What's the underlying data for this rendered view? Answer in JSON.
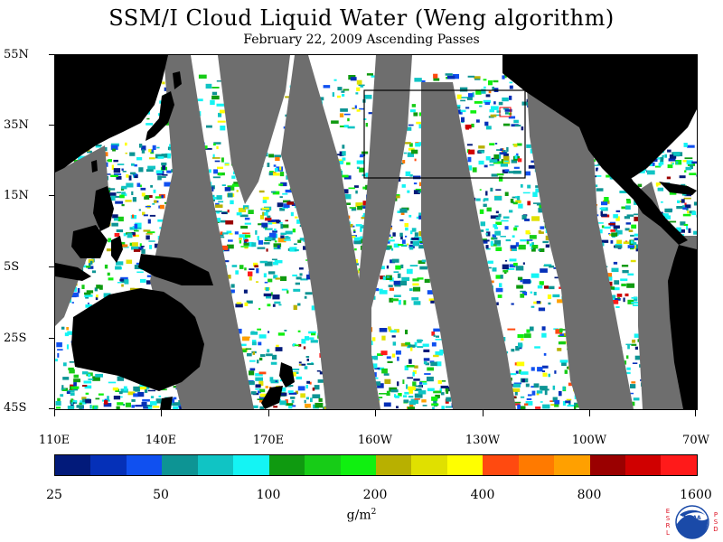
{
  "title": "SSM/I Cloud Liquid Water (Weng algorithm)",
  "subtitle": "February 22, 2009  Ascending Passes",
  "lat_labels": [
    "55N",
    "35N",
    "15N",
    "5S",
    "25S",
    "45S"
  ],
  "lon_labels": [
    "110E",
    "140E",
    "170E",
    "160W",
    "130W",
    "100W",
    "70W"
  ],
  "colorbar": {
    "labels": [
      "25",
      "50",
      "100",
      "200",
      "400",
      "800",
      "1600"
    ],
    "colors": [
      "#021a7a",
      "#0530b8",
      "#1050f0",
      "#0d9494",
      "#10c4c4",
      "#14f4f4",
      "#0f9a10",
      "#17cc17",
      "#10f010",
      "#b8b000",
      "#e0e000",
      "#ffff00",
      "#ff4a10",
      "#ff7a00",
      "#ffa000",
      "#9a0000",
      "#d00000",
      "#ff1a1a"
    ],
    "units_base": "g/m",
    "units_exp": "2"
  },
  "colors": {
    "land": "#000000",
    "no_data": "#6e6e6e",
    "clear": "#ffffff"
  },
  "logo": {
    "left_letters": [
      "E",
      "S",
      "R",
      "L"
    ],
    "right_letters": [
      "P",
      "S",
      "D"
    ],
    "text": "NOAA"
  }
}
